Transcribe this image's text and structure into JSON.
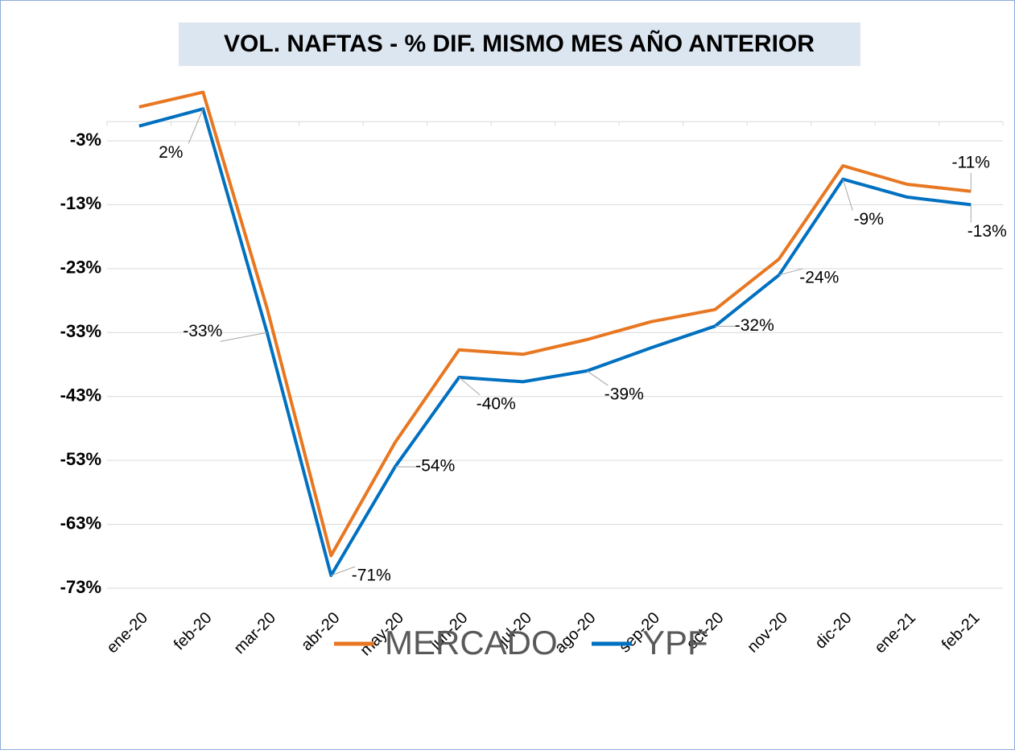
{
  "chart_data": {
    "type": "line",
    "title": "VOL. NAFTAS  - % DIF. MISMO MES AÑO ANTERIOR",
    "categories": [
      "ene-20",
      "feb-20",
      "mar-20",
      "abr-20",
      "may-20",
      "jun-20",
      "jul-20",
      "ago-20",
      "sep-20",
      "oct-20",
      "nov-20",
      "dic-20",
      "ene-21",
      "feb-21"
    ],
    "series": [
      {
        "name": "MERCADO",
        "color": "#e87722",
        "values": [
          2.3,
          4.6,
          -29.2,
          -67.9,
          -50.2,
          -35.7,
          -36.4,
          -34.1,
          -31.3,
          -29.4,
          -21.5,
          -6.9,
          -9.8,
          -10.9
        ],
        "value_labels": [
          null,
          null,
          null,
          null,
          null,
          null,
          null,
          null,
          null,
          null,
          null,
          null,
          null,
          "-11%"
        ]
      },
      {
        "name": "YPF",
        "color": "#0070c0",
        "values": [
          -0.7,
          2,
          -33,
          -71,
          -54,
          -40,
          -40.7,
          -39,
          -35.4,
          -32,
          -24,
          -9,
          -11.8,
          -13
        ],
        "value_labels": [
          null,
          "2%",
          "-33%",
          "-71%",
          "-54%",
          "-40%",
          null,
          "-39%",
          null,
          "-32%",
          "-24%",
          "-9%",
          null,
          "-13%"
        ]
      }
    ],
    "ylim": [
      -73,
      7
    ],
    "yticks": [
      {
        "value": -3,
        "label": "-3%"
      },
      {
        "value": -13,
        "label": "-13%"
      },
      {
        "value": -23,
        "label": "-23%"
      },
      {
        "value": -33,
        "label": "-33%"
      },
      {
        "value": -43,
        "label": "-43%"
      },
      {
        "value": -53,
        "label": "-53%"
      },
      {
        "value": -63,
        "label": "-63%"
      },
      {
        "value": -73,
        "label": "-73%"
      }
    ],
    "grid": true,
    "legend": "bottom"
  }
}
